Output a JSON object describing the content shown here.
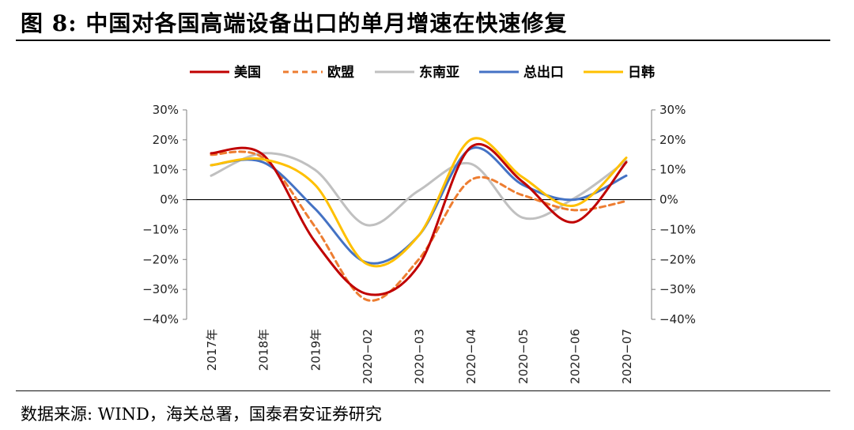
{
  "title": "图 8:  中国对各国高端设备出口的单月增速在快速修复",
  "source": "数据来源:  WIND，海关总署，国泰君安证券研究",
  "chart_data": {
    "type": "line",
    "categories": [
      "2017年",
      "2018年",
      "2019年",
      "2020-02",
      "2020-03",
      "2020-04",
      "2020-05",
      "2020-06",
      "2020-07"
    ],
    "y_ticks": [
      "30%",
      "20%",
      "10%",
      "0%",
      "-10%",
      "-20%",
      "-30%",
      "-40%"
    ],
    "ylim": [
      -40,
      30
    ],
    "secondary_axis": true,
    "legend_position": "top",
    "series": [
      {
        "name": "美国",
        "color": "#c00000",
        "dash": false,
        "values": [
          15.5,
          15,
          -14,
          -31.5,
          -22,
          17.5,
          6,
          -7.5,
          12.5
        ]
      },
      {
        "name": "欧盟",
        "color": "#ed7d31",
        "dash": true,
        "values": [
          15,
          14,
          -9,
          -33.5,
          -20,
          6.5,
          1.5,
          -3.5,
          -0.5
        ]
      },
      {
        "name": "东南亚",
        "color": "#c0c0c0",
        "dash": false,
        "values": [
          8,
          15.5,
          10,
          -8.5,
          3,
          12,
          -6,
          0.5,
          13
        ]
      },
      {
        "name": "总出口",
        "color": "#4472c4",
        "dash": false,
        "values": [
          11.5,
          12.5,
          -3,
          -21,
          -12,
          17,
          5,
          0,
          8
        ]
      },
      {
        "name": "日韩",
        "color": "#ffc000",
        "dash": false,
        "values": [
          11.5,
          13.5,
          5,
          -21.5,
          -12,
          20,
          7.5,
          -2,
          14
        ]
      }
    ]
  }
}
